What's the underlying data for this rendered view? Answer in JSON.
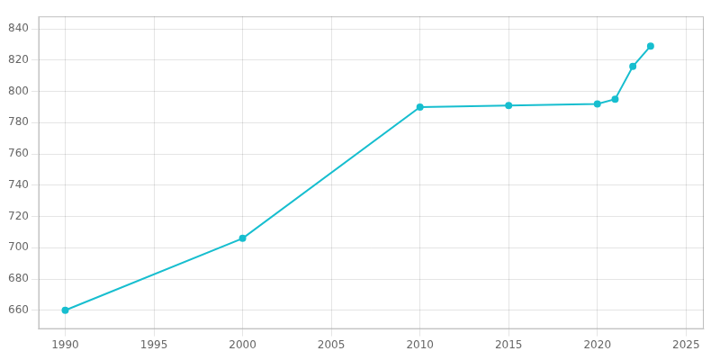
{
  "chart_data": {
    "type": "line",
    "x": [
      1990,
      2000,
      2010,
      2015,
      2020,
      2021,
      2022,
      2023
    ],
    "values": [
      660,
      706,
      790,
      791,
      792,
      795,
      816,
      829
    ],
    "color": "#17becf",
    "marker": "circle",
    "xlim": [
      1988.5,
      2026
    ],
    "ylim": [
      648,
      848
    ],
    "xticks": [
      1990,
      1995,
      2000,
      2005,
      2010,
      2015,
      2020,
      2025
    ],
    "yticks": [
      660,
      680,
      700,
      720,
      740,
      760,
      780,
      800,
      820,
      840
    ],
    "grid": true
  }
}
